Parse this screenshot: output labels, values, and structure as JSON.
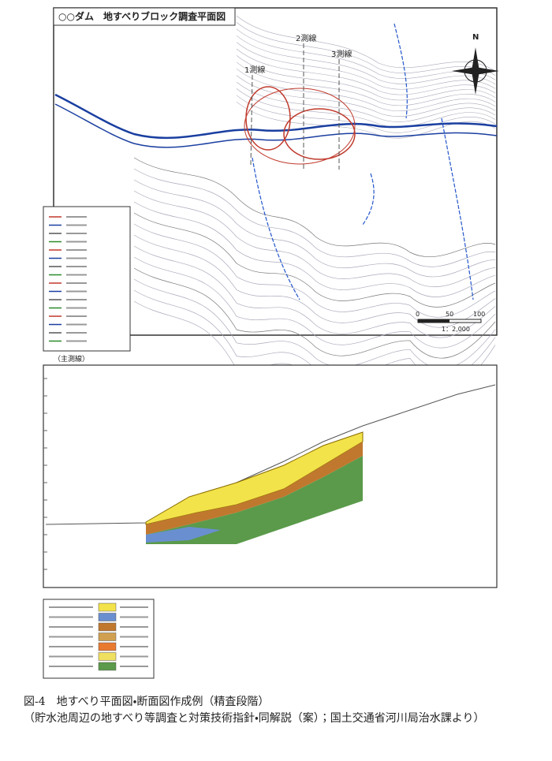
{
  "map": {
    "title": "○○ダム　地すべりブロック調査平面図",
    "lines": [
      "1測線",
      "2測線",
      "3測線"
    ],
    "north": "N",
    "scale": "1：2,000",
    "scale_ticks": [
      0,
      50,
      100
    ]
  },
  "section": {
    "title": "（主測線）"
  },
  "caption": {
    "figure": "図-4",
    "text": "地すべり平面図・断面図作成例（精査段階）",
    "source": "（貯水池周辺の地すべり等調査と対策技術指針・同解説（案）；国土交通省河川局治水課より）"
  }
}
